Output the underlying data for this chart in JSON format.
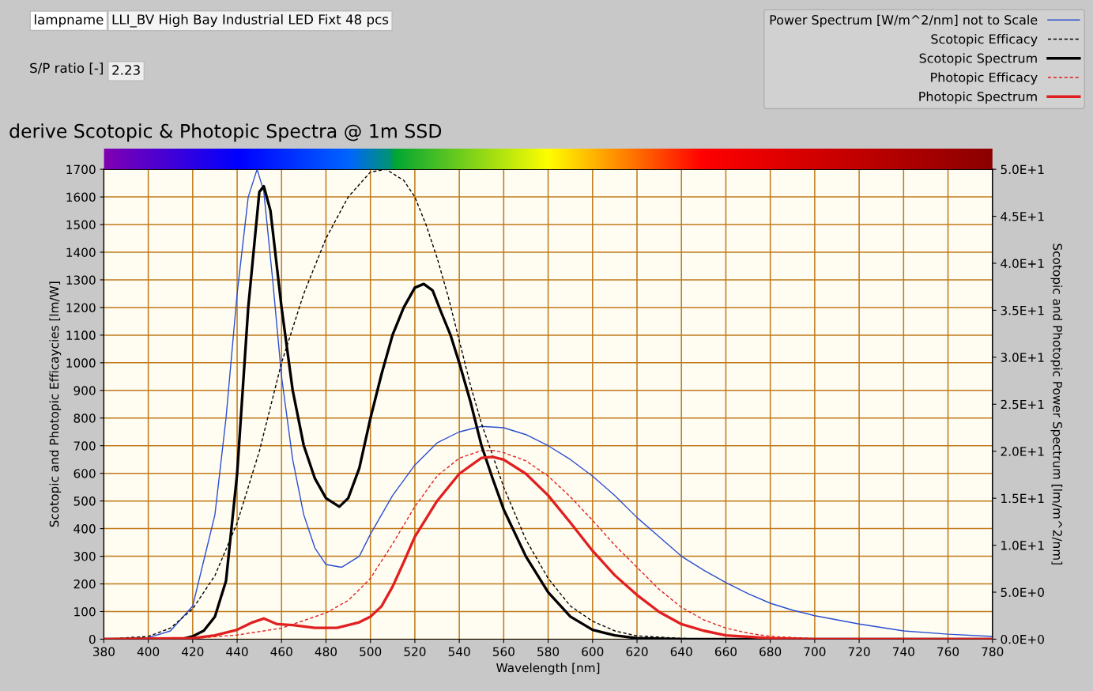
{
  "chart_data": {
    "type": "line",
    "title": "derive Scotopic & Photopic Spectra @ 1m SSD",
    "xlabel": "Wavelength [nm]",
    "ylabel": "Scotopic and Photopic Efficaycies [lm/W]",
    "y2label": "Scotopic and Photopic Power Spectrum [lm/m^2/nm]",
    "annotations": [
      "lampname",
      "LLI_BV High Bay Industrial LED Fixt 48 pcs",
      "S/P ratio [-]",
      "2.23"
    ],
    "xlim": [
      380,
      780
    ],
    "xticks": [
      380,
      400,
      420,
      440,
      460,
      480,
      500,
      520,
      540,
      560,
      580,
      600,
      620,
      640,
      660,
      680,
      700,
      720,
      740,
      760,
      780
    ],
    "ylim": [
      0,
      1700
    ],
    "yticks": [
      0,
      100,
      200,
      300,
      400,
      500,
      600,
      700,
      800,
      900,
      1000,
      1100,
      1200,
      1300,
      1400,
      1500,
      1600,
      1700
    ],
    "y2lim": [
      0,
      50
    ],
    "y2ticks": [
      {
        "value": 0,
        "label": "0.0E+0"
      },
      {
        "value": 5,
        "label": "5.0E+0"
      },
      {
        "value": 10,
        "label": "1.0E+1"
      },
      {
        "value": 15,
        "label": "1.5E+1"
      },
      {
        "value": 20,
        "label": "2.0E+1"
      },
      {
        "value": 25,
        "label": "2.5E+1"
      },
      {
        "value": 30,
        "label": "3.0E+1"
      },
      {
        "value": 35,
        "label": "3.5E+1"
      },
      {
        "value": 40,
        "label": "4.0E+1"
      },
      {
        "value": 45,
        "label": "4.5E+1"
      },
      {
        "value": 50,
        "label": "5.0E+1"
      }
    ],
    "grid": true,
    "legend": "top right",
    "series": [
      {
        "name": "Power Spectrum [W/m^2/nm] not to Scale",
        "color": "#2b4fd0",
        "line_style": "solid",
        "x": [
          380,
          400,
          410,
          420,
          430,
          435,
          440,
          445,
          449,
          452,
          456,
          460,
          465,
          470,
          475,
          480,
          487,
          495,
          500,
          510,
          520,
          530,
          540,
          550,
          560,
          570,
          580,
          590,
          600,
          610,
          620,
          630,
          640,
          650,
          660,
          670,
          680,
          690,
          700,
          720,
          740,
          760,
          780
        ],
        "values": [
          0,
          5,
          30,
          120,
          450,
          800,
          1250,
          1600,
          1700,
          1620,
          1300,
          950,
          650,
          450,
          330,
          270,
          260,
          300,
          380,
          520,
          630,
          710,
          750,
          770,
          765,
          740,
          700,
          650,
          590,
          520,
          440,
          370,
          300,
          250,
          205,
          165,
          130,
          105,
          85,
          55,
          30,
          18,
          10
        ]
      },
      {
        "name": "Scotopic Efficacy",
        "color": "#000000",
        "line_style": "dashed",
        "x": [
          380,
          400,
          410,
          420,
          430,
          440,
          450,
          460,
          470,
          480,
          490,
          500,
          507,
          515,
          520,
          525,
          530,
          535,
          540,
          545,
          550,
          560,
          570,
          580,
          590,
          600,
          610,
          620,
          640,
          660,
          780
        ],
        "values": [
          0,
          10,
          40,
          110,
          230,
          420,
          680,
          1000,
          1250,
          1450,
          1600,
          1690,
          1700,
          1660,
          1600,
          1500,
          1380,
          1240,
          1080,
          920,
          780,
          550,
          360,
          220,
          120,
          65,
          30,
          12,
          3,
          0,
          0
        ]
      },
      {
        "name": "Scotopic Spectrum",
        "color": "#000000",
        "line_style": "solid",
        "axis": "y2",
        "x": [
          380,
          415,
          420,
          425,
          430,
          435,
          440,
          445,
          450,
          452,
          455,
          460,
          465,
          470,
          475,
          480,
          486,
          490,
          495,
          500,
          505,
          510,
          515,
          520,
          524,
          528,
          532,
          536,
          540,
          545,
          550,
          555,
          560,
          570,
          580,
          590,
          600,
          610,
          620,
          640,
          780
        ],
        "values": [
          0,
          0,
          0.3,
          0.9,
          2.4,
          6.2,
          17.6,
          35.3,
          47.6,
          48.2,
          45.6,
          35.3,
          26.5,
          20.6,
          17.1,
          15.0,
          14.1,
          15.0,
          18.2,
          23.5,
          28.2,
          32.4,
          35.3,
          37.4,
          37.8,
          37.1,
          34.7,
          32.4,
          29.4,
          25.3,
          20.6,
          17.1,
          13.8,
          8.8,
          5.0,
          2.4,
          1.0,
          0.4,
          0.1,
          0,
          0
        ]
      },
      {
        "name": "Photopic Efficacy",
        "color": "#e02020",
        "line_style": "dashed",
        "x": [
          380,
          420,
          440,
          460,
          480,
          490,
          500,
          510,
          520,
          530,
          540,
          550,
          555,
          560,
          570,
          580,
          590,
          600,
          610,
          620,
          630,
          640,
          650,
          660,
          670,
          680,
          700,
          780
        ],
        "values": [
          0,
          3,
          15,
          40,
          95,
          140,
          220,
          345,
          480,
          590,
          655,
          682,
          683,
          675,
          645,
          590,
          515,
          430,
          340,
          260,
          180,
          115,
          70,
          40,
          22,
          10,
          2,
          0
        ]
      },
      {
        "name": "Photopic Spectrum",
        "color": "#e02020",
        "line_style": "solid",
        "axis": "y2",
        "x": [
          380,
          420,
          430,
          440,
          447,
          452,
          458,
          465,
          475,
          485,
          495,
          500,
          505,
          510,
          515,
          520,
          530,
          540,
          550,
          555,
          560,
          570,
          580,
          590,
          600,
          610,
          620,
          630,
          640,
          650,
          660,
          680,
          700,
          780
        ],
        "values": [
          0,
          0.1,
          0.4,
          1.0,
          1.8,
          2.2,
          1.6,
          1.5,
          1.2,
          1.2,
          1.8,
          2.4,
          3.5,
          5.6,
          8.2,
          10.9,
          14.7,
          17.6,
          19.3,
          19.4,
          19.1,
          17.6,
          15.3,
          12.4,
          9.4,
          6.8,
          4.7,
          2.9,
          1.6,
          0.9,
          0.4,
          0.1,
          0,
          0
        ]
      }
    ]
  }
}
